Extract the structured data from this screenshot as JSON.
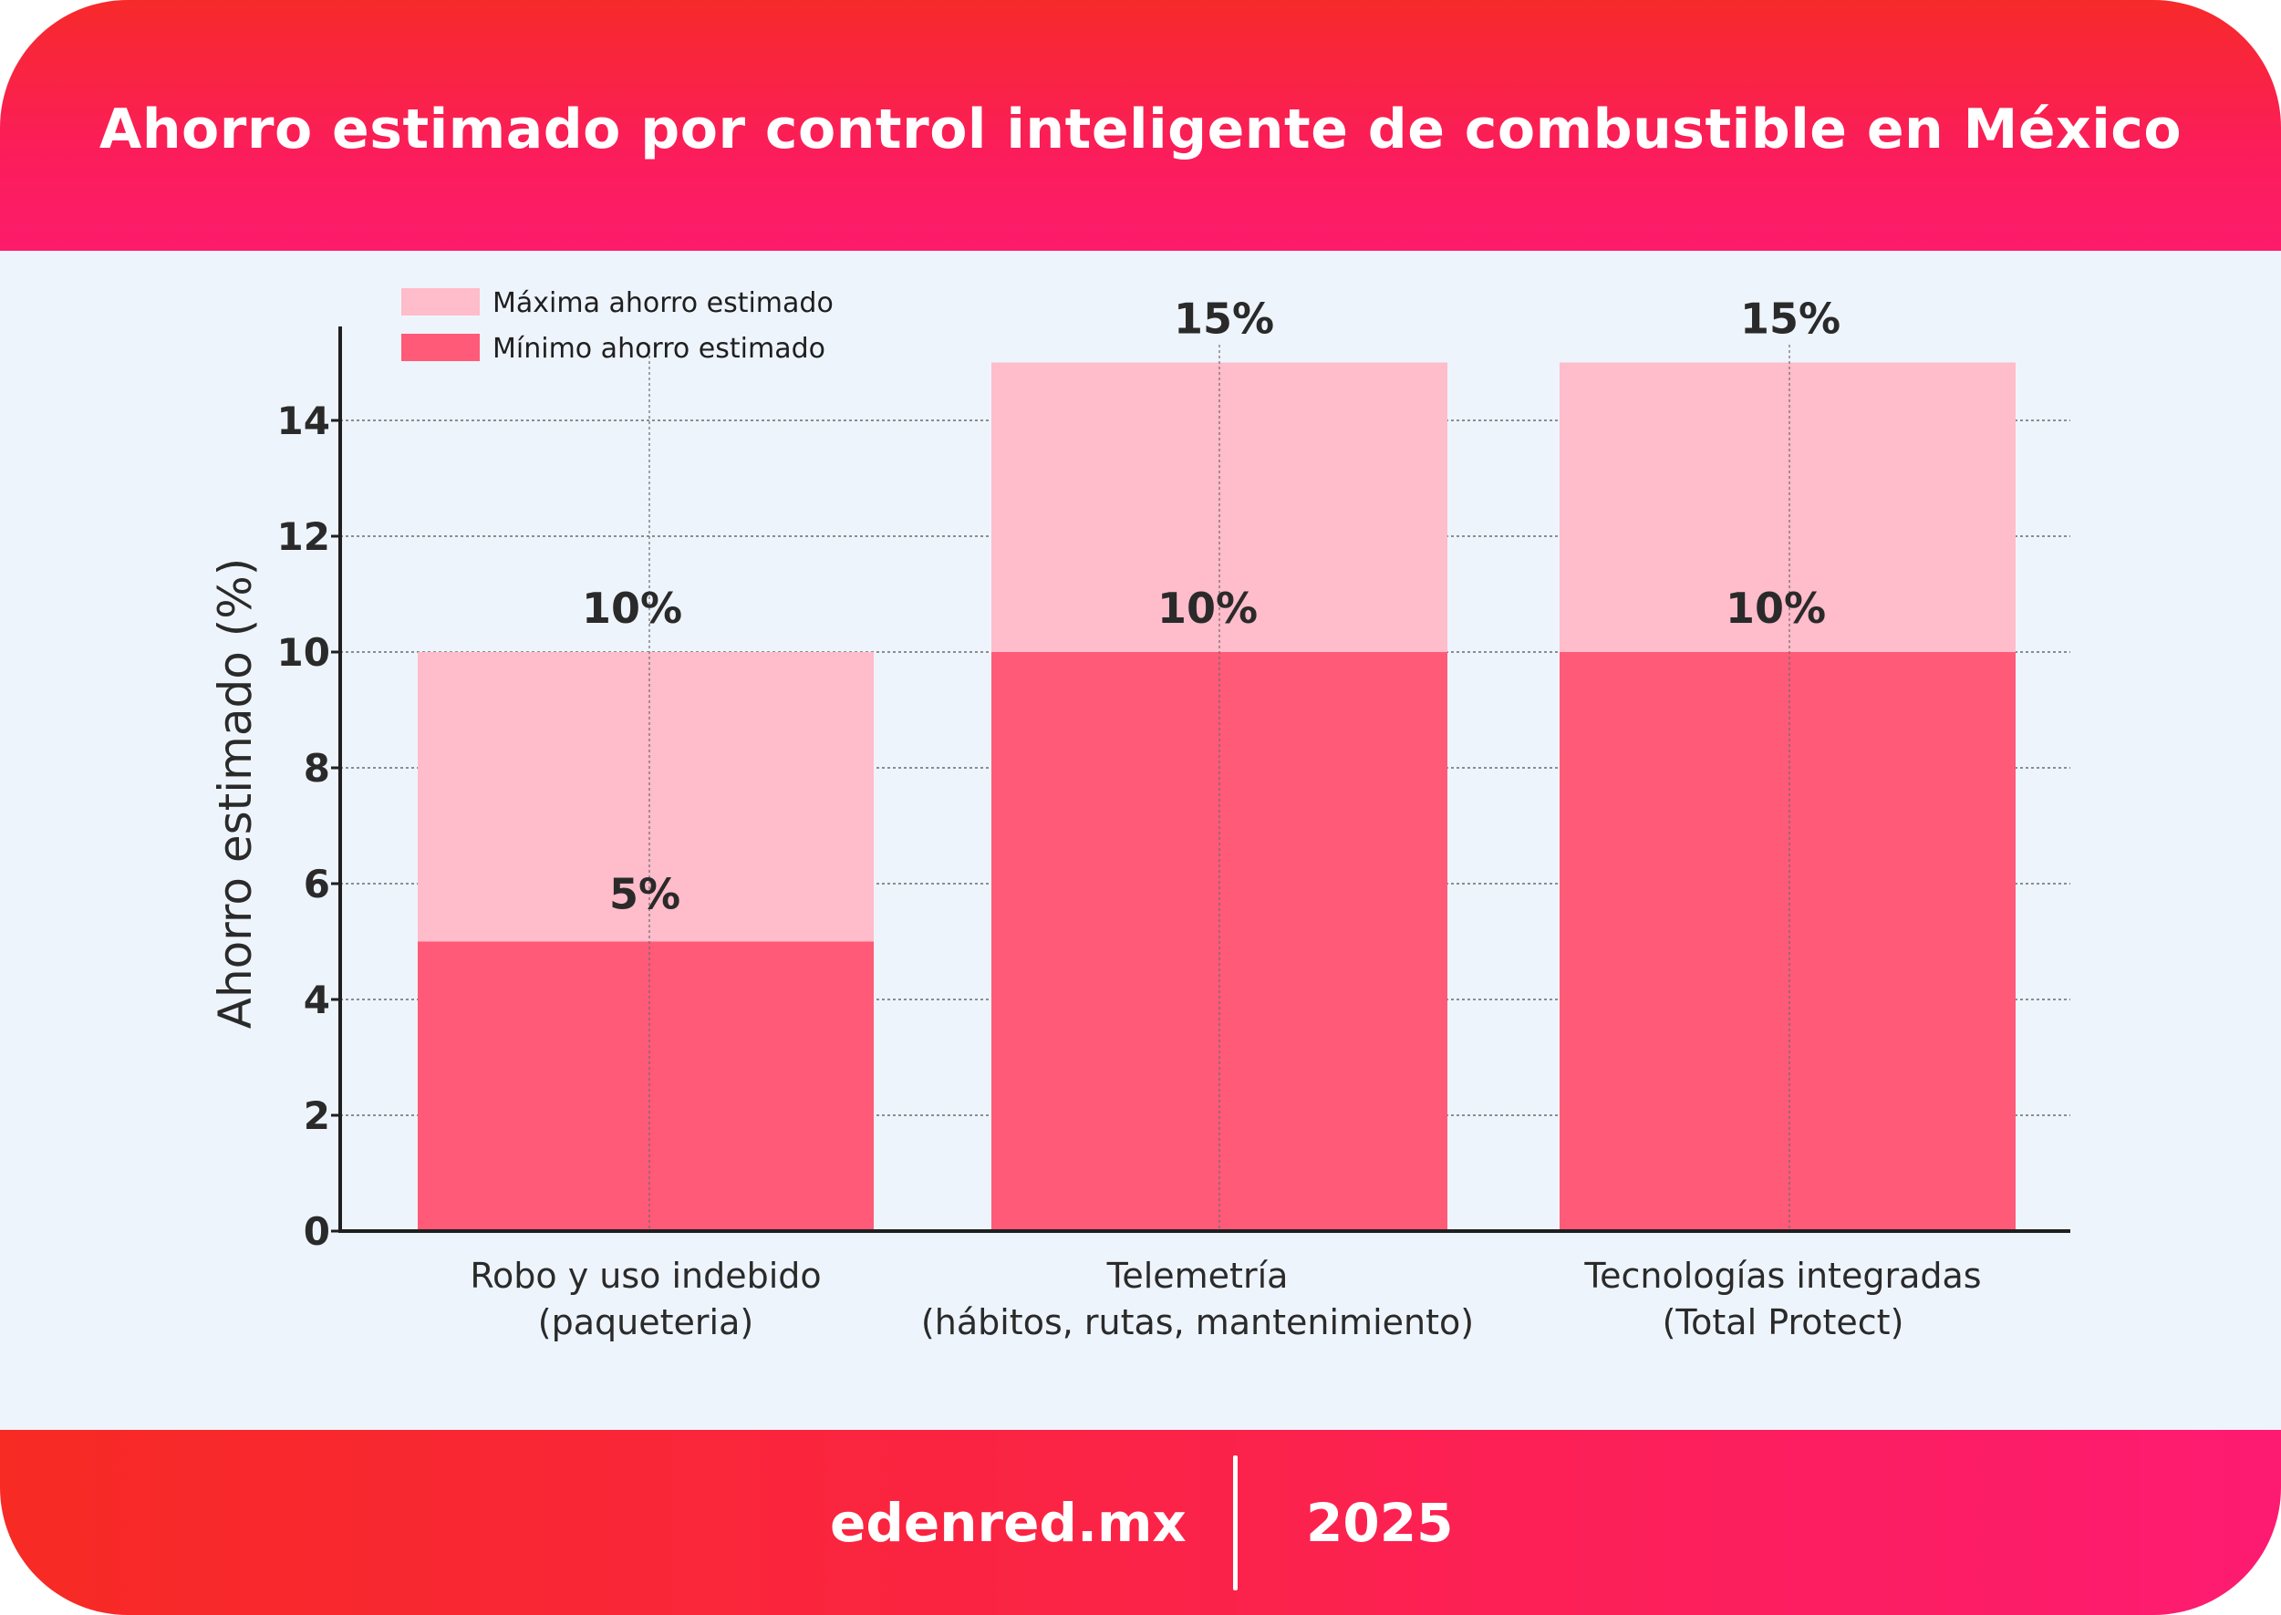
{
  "header": {
    "title": "Ahorro estimado por control inteligente de combustible en México"
  },
  "footer": {
    "site": "edenred.mx",
    "year": "2025"
  },
  "colors": {
    "max_color": "#ffbccb",
    "min_color": "#ff5a77",
    "axis": "#1f1f1f",
    "grid": "#6b6b6b"
  },
  "chart_data": {
    "type": "bar",
    "title": "Ahorro estimado por control inteligente de combustible en México",
    "xlabel": "",
    "ylabel": "Ahorro estimado (%)",
    "ylim": [
      0,
      15.5
    ],
    "yticks": [
      0,
      2,
      4,
      6,
      8,
      10,
      12,
      14
    ],
    "grid": true,
    "legend_position": "top-left",
    "categories": [
      [
        "Robo y uso indebido",
        "(paqueteria)"
      ],
      [
        "Telemetría",
        "(hábitos, rutas, mantenimiento)"
      ],
      [
        "Tecnologías integradas",
        "(Total Protect)"
      ]
    ],
    "series": [
      {
        "name": "Máxima ahorro estimado",
        "values": [
          10,
          15,
          15
        ],
        "labels": [
          "10%",
          "15%",
          "15%"
        ]
      },
      {
        "name": "Mínimo ahorro estimado",
        "values": [
          5,
          10,
          10
        ],
        "labels": [
          "5%",
          "10%",
          "10%"
        ]
      }
    ]
  }
}
